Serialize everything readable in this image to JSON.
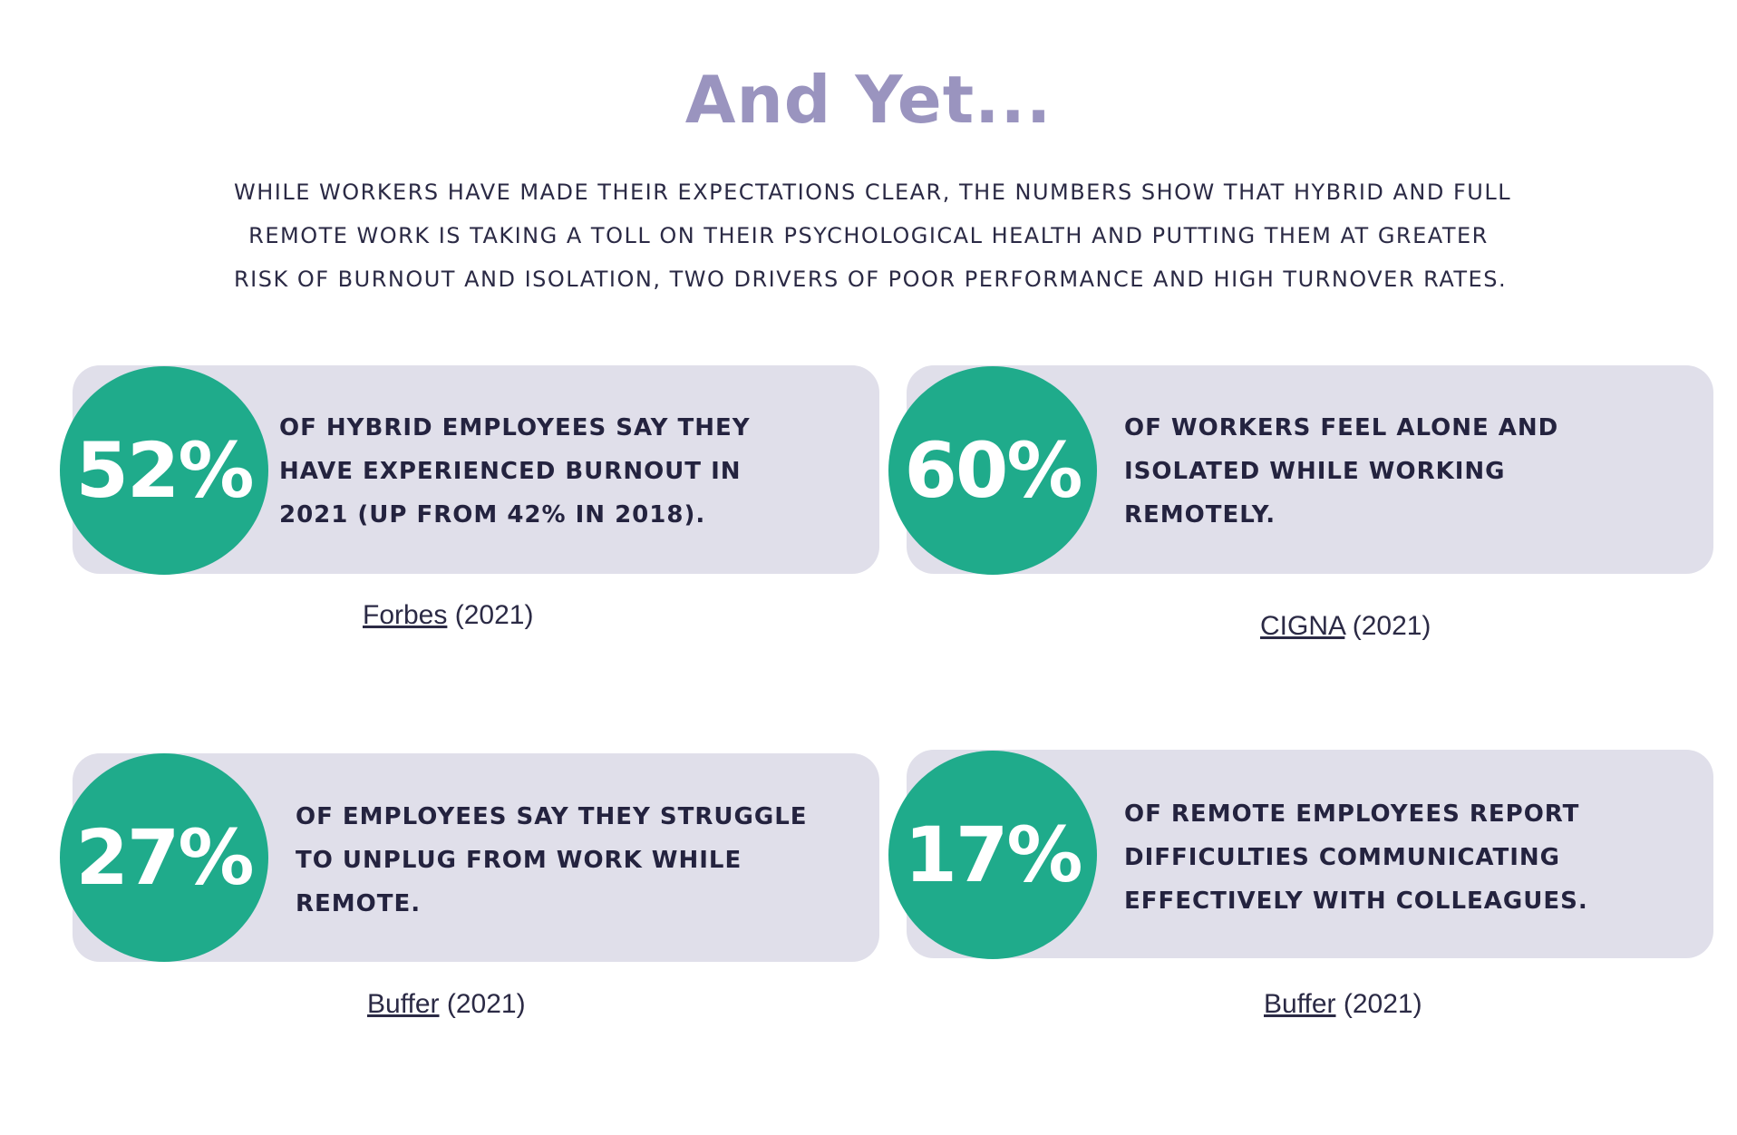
{
  "heading": "And Yet...",
  "intro_lines": [
    "WHILE WORKERS HAVE MADE THEIR EXPECTATIONS CLEAR, THE NUMBERS SHOW THAT HYBRID AND FULL",
    "REMOTE WORK IS TAKING A TOLL ON THEIR PSYCHOLOGICAL HEALTH AND PUTTING THEM AT GREATER",
    "RISK OF BURNOUT AND ISOLATION, TWO DRIVERS OF POOR PERFORMANCE AND HIGH TURNOVER RATES."
  ],
  "stats": [
    {
      "percent": "52%",
      "lines": [
        "OF HYBRID EMPLOYEES SAY THEY",
        "HAVE EXPERIENCED BURNOUT IN",
        "2021 (UP FROM 42% IN 2018)."
      ],
      "source_name": "Forbes",
      "source_year": "(2021)"
    },
    {
      "percent": "60%",
      "lines": [
        "OF WORKERS FEEL ALONE AND",
        "ISOLATED WHILE WORKING",
        "REMOTELY."
      ],
      "source_name": "CIGNA",
      "source_year": "(2021)"
    },
    {
      "percent": "27%",
      "lines": [
        "OF EMPLOYEES SAY THEY STRUGGLE",
        "TO UNPLUG FROM WORK WHILE",
        "REMOTE."
      ],
      "source_name": "Buffer",
      "source_year": "(2021)"
    },
    {
      "percent": "17%",
      "lines": [
        "OF REMOTE EMPLOYEES REPORT",
        "DIFFICULTIES COMMUNICATING",
        "EFFECTIVELY WITH COLLEAGUES."
      ],
      "source_name": "Buffer",
      "source_year": "(2021)"
    }
  ],
  "colors": {
    "heading": "#9a94bf",
    "circle": "#1fab8b",
    "card": "#e0dfea",
    "text": "#24233f"
  }
}
